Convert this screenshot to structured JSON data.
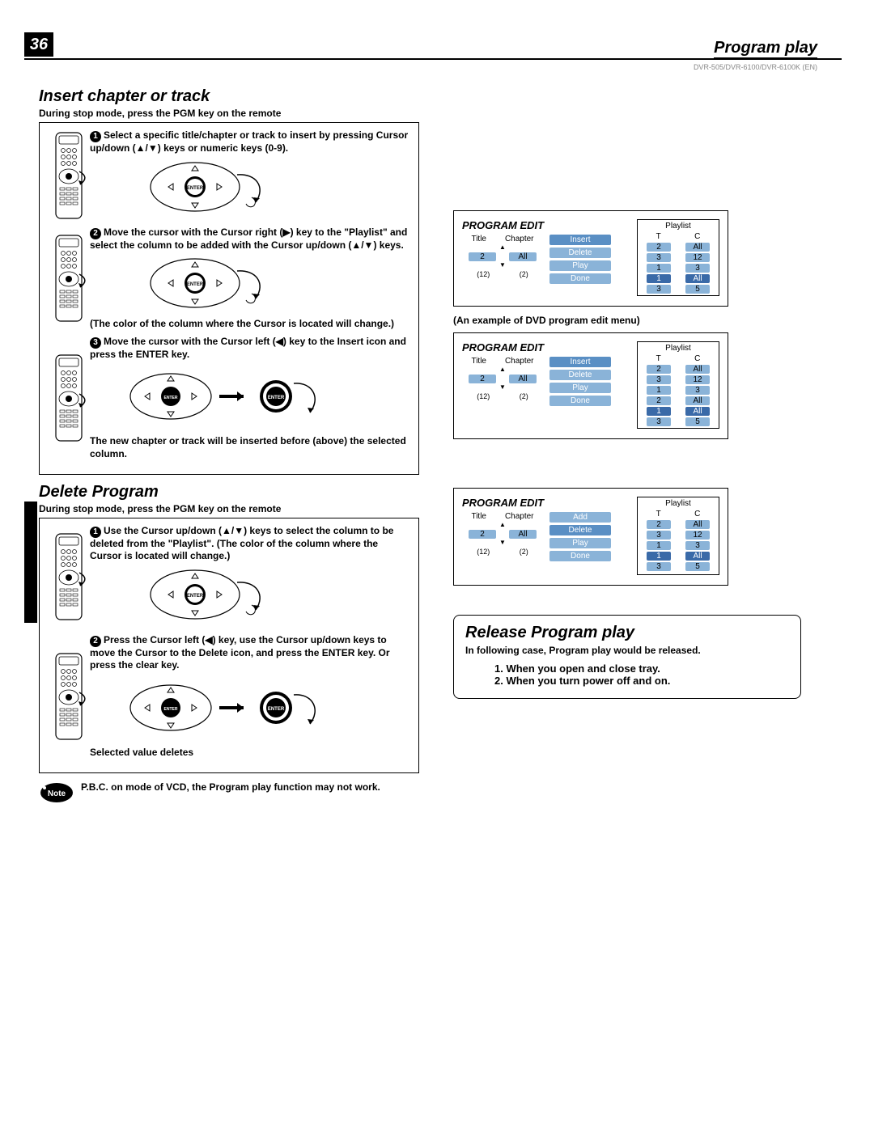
{
  "page_number": "36",
  "top_title": "Program play",
  "model_line": "DVR-505/DVR-6100/DVR-6100K (EN)",
  "insert": {
    "title": "Insert chapter or track",
    "subtitle": "During stop mode, press the PGM key on the remote",
    "step1": "Select a specific title/chapter or track to insert by pressing Cursor up/down (▲/▼) keys or numeric keys (0-9).",
    "step2": "Move the cursor with the Cursor right (▶) key to the \"Playlist\" and select the column to be added with the Cursor up/down (▲/▼) keys.",
    "note2": "(The color of the column where the Cursor is located will change.)",
    "step3": "Move the cursor with the Cursor left (◀) key to the Insert icon and press the ENTER key.",
    "result": "The new chapter or track will be inserted before (above) the selected column."
  },
  "delete": {
    "title": "Delete Program",
    "subtitle": "During stop mode, press the PGM key on the remote",
    "step1": "Use the Cursor up/down (▲/▼) keys to select the column to be deleted from the \"Playlist\". (The color of the column where the Cursor is located will change.)",
    "step2": "Press the Cursor left (◀) key, use the Cursor up/down keys to move the Cursor to the Delete icon, and press the ENTER key. Or press the clear key.",
    "result": "Selected value deletes"
  },
  "note": "P.B.C. on mode of VCD, the Program play function may not work.",
  "caption": "(An example of DVD program edit menu)",
  "panel": {
    "title": "PROGRAM EDIT",
    "playlist": "Playlist",
    "head_t": "T",
    "head_c": "C",
    "title_h": "Title",
    "chap_h": "Chapter",
    "foot_t": "(12)",
    "foot_c": "(2)",
    "actions": {
      "add": "Add",
      "insert": "Insert",
      "delete": "Delete",
      "play": "Play",
      "done": "Done"
    }
  },
  "panel1": {
    "tc_t": "2",
    "tc_c": "All",
    "rows": [
      {
        "t": "2",
        "c": "All"
      },
      {
        "t": "3",
        "c": "12"
      },
      {
        "t": "1",
        "c": "3"
      },
      {
        "t": "1",
        "c": "All",
        "hl": true
      },
      {
        "t": "3",
        "c": "5"
      }
    ]
  },
  "panel2": {
    "tc_t": "2",
    "tc_c": "All",
    "rows": [
      {
        "t": "2",
        "c": "All"
      },
      {
        "t": "3",
        "c": "12"
      },
      {
        "t": "1",
        "c": "3"
      },
      {
        "t": "2",
        "c": "All"
      },
      {
        "t": "1",
        "c": "All",
        "hl": true
      },
      {
        "t": "3",
        "c": "5"
      }
    ]
  },
  "panel3": {
    "tc_t": "2",
    "tc_c": "All",
    "rows": [
      {
        "t": "2",
        "c": "All"
      },
      {
        "t": "3",
        "c": "12"
      },
      {
        "t": "1",
        "c": "3"
      },
      {
        "t": "1",
        "c": "All",
        "hl": true
      },
      {
        "t": "3",
        "c": "5"
      },
      {
        "t": "",
        "c": ""
      }
    ]
  },
  "release": {
    "title": "Release Program play",
    "subtitle": "In following case, Program play would be released.",
    "item1": "1.  When you open and close tray.",
    "item2": "2.  When you turn power off and on."
  },
  "colors": {
    "pill": "#8ab3d8",
    "hl": "#3a6aa8",
    "empty": "#c8dae8"
  }
}
